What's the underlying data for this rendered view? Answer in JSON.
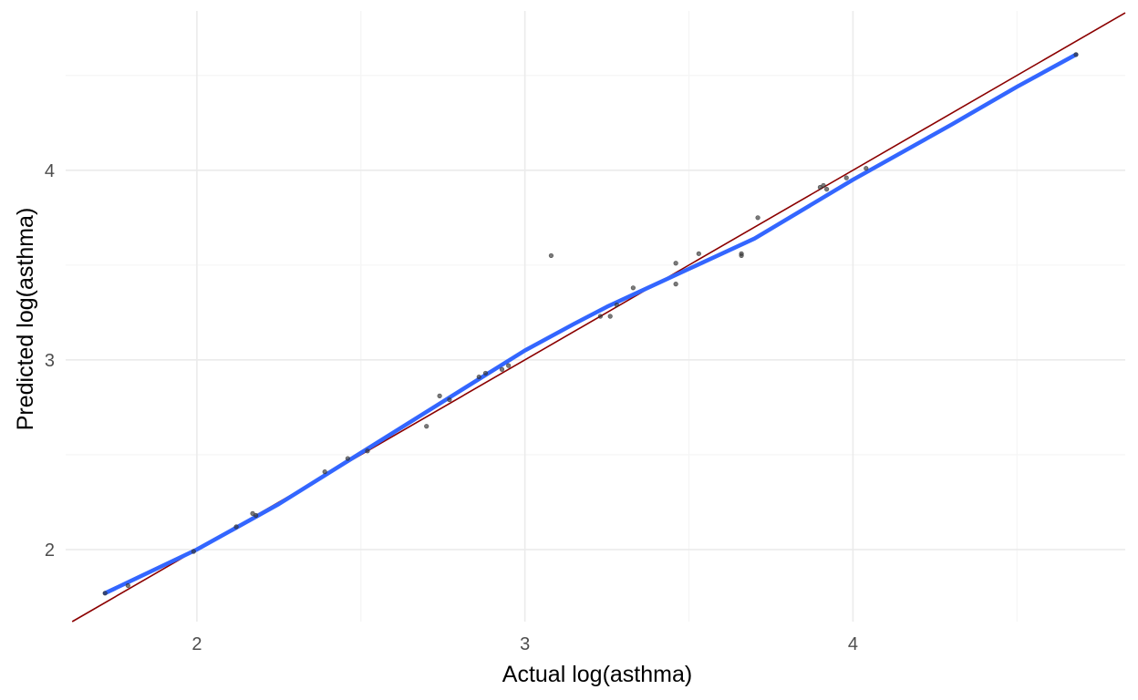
{
  "chart_data": {
    "type": "scatter",
    "title": "",
    "xlabel": "Actual log(asthma)",
    "ylabel": "Predicted log(asthma)",
    "xlim": [
      1.6,
      4.83
    ],
    "ylim": [
      1.62,
      4.84
    ],
    "x_ticks": [
      2,
      3,
      4
    ],
    "y_ticks": [
      2,
      3,
      4
    ],
    "x_tick_labels": [
      "2",
      "3",
      "4"
    ],
    "y_tick_labels": [
      "2",
      "3",
      "4"
    ],
    "grid": true,
    "legend": "none",
    "points": [
      {
        "x": 1.72,
        "y": 1.77
      },
      {
        "x": 1.79,
        "y": 1.81
      },
      {
        "x": 1.99,
        "y": 1.99
      },
      {
        "x": 2.12,
        "y": 2.12
      },
      {
        "x": 2.17,
        "y": 2.19
      },
      {
        "x": 2.18,
        "y": 2.18
      },
      {
        "x": 2.39,
        "y": 2.41
      },
      {
        "x": 2.46,
        "y": 2.48
      },
      {
        "x": 2.52,
        "y": 2.52
      },
      {
        "x": 2.7,
        "y": 2.65
      },
      {
        "x": 2.74,
        "y": 2.81
      },
      {
        "x": 2.77,
        "y": 2.79
      },
      {
        "x": 2.86,
        "y": 2.91
      },
      {
        "x": 2.88,
        "y": 2.93
      },
      {
        "x": 2.93,
        "y": 2.95
      },
      {
        "x": 2.95,
        "y": 2.97
      },
      {
        "x": 3.08,
        "y": 3.55
      },
      {
        "x": 3.23,
        "y": 3.23
      },
      {
        "x": 3.26,
        "y": 3.23
      },
      {
        "x": 3.28,
        "y": 3.29
      },
      {
        "x": 3.33,
        "y": 3.38
      },
      {
        "x": 3.46,
        "y": 3.51
      },
      {
        "x": 3.46,
        "y": 3.4
      },
      {
        "x": 3.53,
        "y": 3.56
      },
      {
        "x": 3.66,
        "y": 3.56
      },
      {
        "x": 3.66,
        "y": 3.55
      },
      {
        "x": 3.71,
        "y": 3.75
      },
      {
        "x": 3.9,
        "y": 3.91
      },
      {
        "x": 3.91,
        "y": 3.92
      },
      {
        "x": 3.92,
        "y": 3.9
      },
      {
        "x": 3.98,
        "y": 3.96
      },
      {
        "x": 4.04,
        "y": 4.01
      },
      {
        "x": 4.68,
        "y": 4.61
      }
    ],
    "reference_line": {
      "slope": 1,
      "intercept": 0,
      "color": "#8b0000"
    },
    "smooth_line": [
      {
        "x": 1.72,
        "y": 1.77
      },
      {
        "x": 2.0,
        "y": 2.0
      },
      {
        "x": 2.25,
        "y": 2.24
      },
      {
        "x": 2.5,
        "y": 2.51
      },
      {
        "x": 2.75,
        "y": 2.78
      },
      {
        "x": 3.0,
        "y": 3.05
      },
      {
        "x": 3.15,
        "y": 3.19
      },
      {
        "x": 3.25,
        "y": 3.28
      },
      {
        "x": 3.4,
        "y": 3.4
      },
      {
        "x": 3.5,
        "y": 3.48
      },
      {
        "x": 3.7,
        "y": 3.64
      },
      {
        "x": 4.0,
        "y": 3.95
      },
      {
        "x": 4.3,
        "y": 4.24
      },
      {
        "x": 4.5,
        "y": 4.44
      },
      {
        "x": 4.68,
        "y": 4.61
      }
    ],
    "colors": {
      "points": "#333333",
      "smooth": "#3366ff",
      "grid_major": "#ebebeb",
      "grid_minor": "#f5f5f5"
    }
  }
}
